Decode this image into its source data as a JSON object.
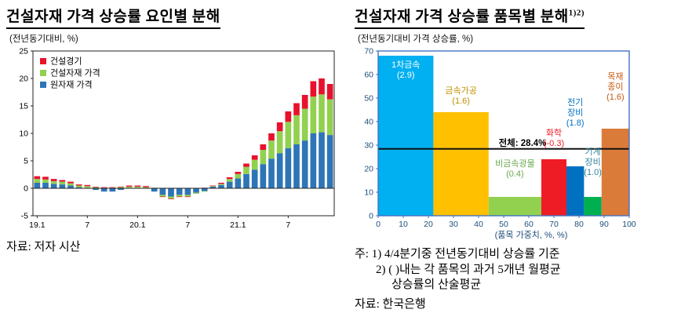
{
  "left_panel": {
    "title": "건설자재 가격 상승률 요인별 분해",
    "subtitle": "(전년동기대비, %)",
    "source": "자료: 저자 시산"
  },
  "right_panel": {
    "title": "건설자재 가격 상승률 품목별 분해",
    "title_superscript": "1)2)",
    "subtitle": "(전년동기대비 가격 상승률, %)",
    "xaxis_caption": "(품목 가중치, %)",
    "notes": [
      "주: 1) 4/4분기중 전년동기대비 상승률 기준",
      "2) ( )내는 각 품목의 과거 5개년 월평균",
      "상승률의 산술평균"
    ],
    "source": "자료: 한국은행"
  },
  "chart_data": [
    {
      "type": "bar",
      "stacked": true,
      "title": "건설자재 가격 상승률 요인별 분해",
      "ylabel": "전년동기대비, %",
      "ylim": [
        -5,
        25
      ],
      "yticks": [
        -5,
        0,
        5,
        10,
        15,
        20,
        25
      ],
      "n_bars": 36,
      "x_start": "2019.1",
      "x_end": "2021.12",
      "xticks": [
        {
          "index": 0,
          "label": "19.1"
        },
        {
          "index": 6,
          "label": "7"
        },
        {
          "index": 12,
          "label": "20.1"
        },
        {
          "index": 18,
          "label": "7"
        },
        {
          "index": 24,
          "label": "21.1"
        },
        {
          "index": 30,
          "label": "7"
        }
      ],
      "stack_order": [
        2,
        1,
        0
      ],
      "series": [
        {
          "name": "건설경기",
          "color": "#e8112d",
          "values": [
            0.5,
            0.5,
            0.4,
            0.3,
            0.3,
            0.2,
            0.2,
            0.1,
            0.1,
            0.1,
            0.1,
            0.2,
            0.2,
            0.2,
            0.0,
            -0.1,
            -0.1,
            -0.1,
            -0.1,
            0.0,
            0.1,
            0.1,
            0.2,
            0.3,
            0.4,
            0.6,
            0.8,
            1.0,
            1.3,
            1.6,
            1.9,
            2.2,
            2.5,
            2.8,
            2.9,
            2.8
          ]
        },
        {
          "name": "건설자재 가격",
          "color": "#92d050",
          "values": [
            0.7,
            0.6,
            0.5,
            0.5,
            0.4,
            0.3,
            0.3,
            0.2,
            0.1,
            0.1,
            0.2,
            0.2,
            0.2,
            0.2,
            0.1,
            -0.3,
            -0.4,
            -0.3,
            -0.3,
            -0.2,
            -0.1,
            0.1,
            0.2,
            0.5,
            0.8,
            1.3,
            1.8,
            2.6,
            3.3,
            4.0,
            4.8,
            5.3,
            5.8,
            6.7,
            6.9,
            6.5
          ]
        },
        {
          "name": "원자재 가격",
          "color": "#2e75b6",
          "values": [
            1.0,
            1.0,
            0.8,
            0.7,
            0.5,
            0.2,
            0.1,
            -0.3,
            -0.6,
            -0.6,
            -0.3,
            0.1,
            0.1,
            0.0,
            -0.6,
            -1.2,
            -1.5,
            -1.2,
            -1.2,
            -0.8,
            -0.5,
            0.3,
            0.6,
            1.2,
            1.8,
            2.6,
            3.4,
            4.4,
            5.4,
            6.4,
            7.3,
            8.0,
            8.7,
            10.0,
            10.2,
            9.7
          ]
        }
      ]
    },
    {
      "type": "variable-width-bar",
      "title": "건설자재 가격 상승률 품목별 분해",
      "ylabel": "전년동기대비 가격 상승률, %",
      "xlabel": "품목 가중치, %",
      "ylim": [
        0,
        70
      ],
      "yticks": [
        0,
        10,
        20,
        30,
        40,
        50,
        60,
        70
      ],
      "xlim": [
        0,
        100
      ],
      "xticks": [
        0,
        10,
        20,
        30,
        40,
        50,
        60,
        70,
        80,
        90,
        100
      ],
      "total_line": {
        "value": 28.4,
        "label": "전체: 28.4%",
        "label_x": 67,
        "color": "#111111"
      },
      "bars": [
        {
          "name": "1차금속",
          "avg5yr": "2.9",
          "weight": 22,
          "value": 68,
          "color": "#00b0f0",
          "label_lines": [
            "1차금속",
            "(2.9)"
          ],
          "label_color": "#ffffff",
          "label_y": 63
        },
        {
          "name": "금속가공",
          "avg5yr": "1.6",
          "weight": 22,
          "value": 44,
          "color": "#ffc000",
          "label_lines": [
            "금속가공",
            "(1.6)"
          ],
          "label_color": "#bf8f00",
          "label_y": 52
        },
        {
          "name": "비금속광물",
          "avg5yr": "0.4",
          "weight": 21,
          "value": 8,
          "color": "#92d050",
          "label_lines": [
            "비금속광물",
            "(0.4)"
          ],
          "label_color": "#6aa84f",
          "label_y": 21
        },
        {
          "name": "화학",
          "avg5yr": "-0.3",
          "weight": 10,
          "value": 24,
          "color": "#ee1c25",
          "label_lines": [
            "화학",
            "(-0.3)"
          ],
          "label_color": "#ee1c25",
          "label_y": 34
        },
        {
          "name": "전기장비",
          "avg5yr": "1.8",
          "weight": 7,
          "value": 21,
          "color": "#0070c0",
          "label_lines": [
            "전기",
            "장비",
            "(1.8)"
          ],
          "label_color": "#0070c0",
          "label_y": 47
        },
        {
          "name": "기계장비",
          "avg5yr": "1.0",
          "weight": 7,
          "value": 8,
          "color": "#00b050",
          "label_lines": [
            "기계",
            "장비",
            "(1.0)"
          ],
          "label_color": "#31859c",
          "label_y": 26
        },
        {
          "name": "목재종이",
          "avg5yr": "1.6",
          "weight": 11,
          "value": 37,
          "color": "#db7b39",
          "label_lines": [
            "목재",
            "종이",
            "(1.6)"
          ],
          "label_color": "#c55a11",
          "label_y": 58
        }
      ]
    }
  ]
}
